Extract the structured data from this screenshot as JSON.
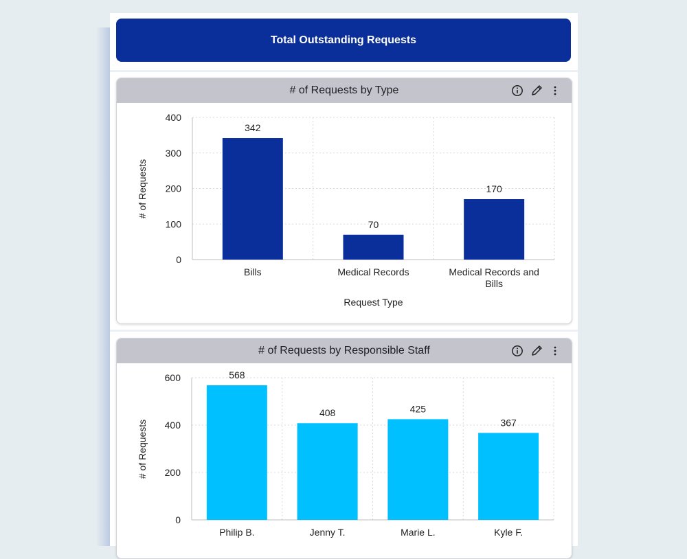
{
  "dashboard": {
    "title": "Total Outstanding Requests"
  },
  "cards": [
    {
      "title": "# of Requests by Type",
      "icons": [
        "info-icon",
        "edit-pencil-icon",
        "more-vertical-icon"
      ]
    },
    {
      "title": "# of Requests by Responsible Staff",
      "icons": [
        "info-icon",
        "edit-pencil-icon",
        "more-vertical-icon"
      ]
    }
  ],
  "colors": {
    "banner": "#0a2f9a",
    "bar_type": "#0a2f9a",
    "bar_staff": "#00c0ff"
  },
  "chart_data": [
    {
      "type": "bar",
      "title": "# of Requests by Type",
      "categories": [
        "Bills",
        "Medical Records",
        "Medical Records and Bills"
      ],
      "values": [
        342,
        70,
        170
      ],
      "xlabel": "Request Type",
      "ylabel": "# of Requests",
      "ylim": [
        0,
        400
      ],
      "yticks": [
        0,
        100,
        200,
        300,
        400
      ],
      "grid": true,
      "data_labels": true
    },
    {
      "type": "bar",
      "title": "# of Requests by Responsible Staff",
      "categories": [
        "Philip B.",
        "Jenny T.",
        "Marie L.",
        "Kyle F."
      ],
      "values": [
        568,
        408,
        425,
        367
      ],
      "xlabel": "",
      "ylabel": "# of Requests",
      "ylim": [
        0,
        600
      ],
      "yticks": [
        0,
        200,
        400,
        600
      ],
      "grid": true,
      "data_labels": true
    }
  ]
}
